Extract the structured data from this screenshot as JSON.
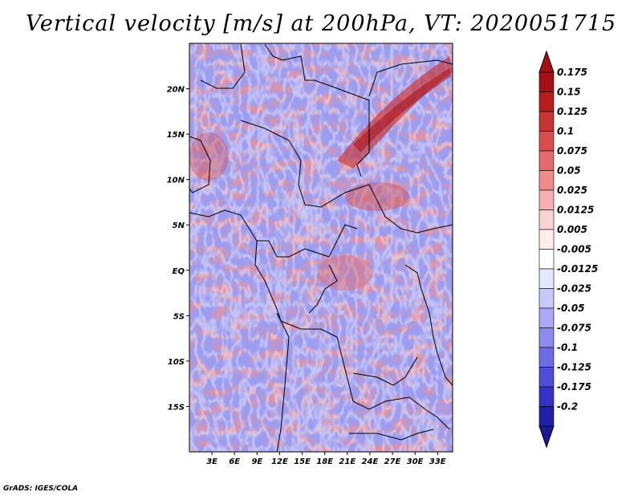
{
  "title": "Vertical velocity [m/s] at 200hPa, VT: 2020051715",
  "credit": "GrADS: IGES/COLA",
  "map": {
    "variable": "Vertical velocity",
    "units": "m/s",
    "level": "200hPa",
    "valid_time": "2020051715",
    "lon_range": [
      0,
      35
    ],
    "lat_range": [
      -20,
      25
    ],
    "lat_labels": [
      {
        "value": 20,
        "label": "20N"
      },
      {
        "value": 15,
        "label": "15N"
      },
      {
        "value": 10,
        "label": "10N"
      },
      {
        "value": 5,
        "label": "5N"
      },
      {
        "value": 0,
        "label": "EQ"
      },
      {
        "value": -5,
        "label": "5S"
      },
      {
        "value": -10,
        "label": "10S"
      },
      {
        "value": -15,
        "label": "15S"
      }
    ],
    "lon_labels": [
      {
        "value": 3,
        "label": "3E"
      },
      {
        "value": 6,
        "label": "6E"
      },
      {
        "value": 9,
        "label": "9E"
      },
      {
        "value": 12,
        "label": "12E"
      },
      {
        "value": 15,
        "label": "15E"
      },
      {
        "value": 18,
        "label": "18E"
      },
      {
        "value": 21,
        "label": "21E"
      },
      {
        "value": 24,
        "label": "24E"
      },
      {
        "value": 27,
        "label": "27E"
      },
      {
        "value": 30,
        "label": "30E"
      },
      {
        "value": 33,
        "label": "33E"
      }
    ]
  },
  "colorbar": {
    "levels": [
      {
        "label": "0.175",
        "color": "#a50f15"
      },
      {
        "label": "0.15",
        "color": "#b81d1d"
      },
      {
        "label": "0.125",
        "color": "#c93333"
      },
      {
        "label": "0.1",
        "color": "#d84d4d"
      },
      {
        "label": "0.075",
        "color": "#e46b6b"
      },
      {
        "label": "0.05",
        "color": "#ee8c8c"
      },
      {
        "label": "0.025",
        "color": "#f6b0b0"
      },
      {
        "label": "0.0125",
        "color": "#fbd2d2"
      },
      {
        "label": "0.005",
        "color": "#ffeded"
      },
      {
        "label": "-0.005",
        "color": "#ffffff"
      },
      {
        "label": "-0.0125",
        "color": "#e6e6ff"
      },
      {
        "label": "-0.025",
        "color": "#c8c8fb"
      },
      {
        "label": "-0.05",
        "color": "#a9a9f5"
      },
      {
        "label": "-0.075",
        "color": "#8b8bee"
      },
      {
        "label": "-0.1",
        "color": "#6c6ce4"
      },
      {
        "label": "-0.125",
        "color": "#4e4ed8"
      },
      {
        "label": "-0.175",
        "color": "#3333c6"
      },
      {
        "label": "-0.2",
        "color": "#1f1fa8"
      }
    ],
    "top_extend_color": "#a50f15",
    "bottom_extend_color": "#1a1a96"
  }
}
